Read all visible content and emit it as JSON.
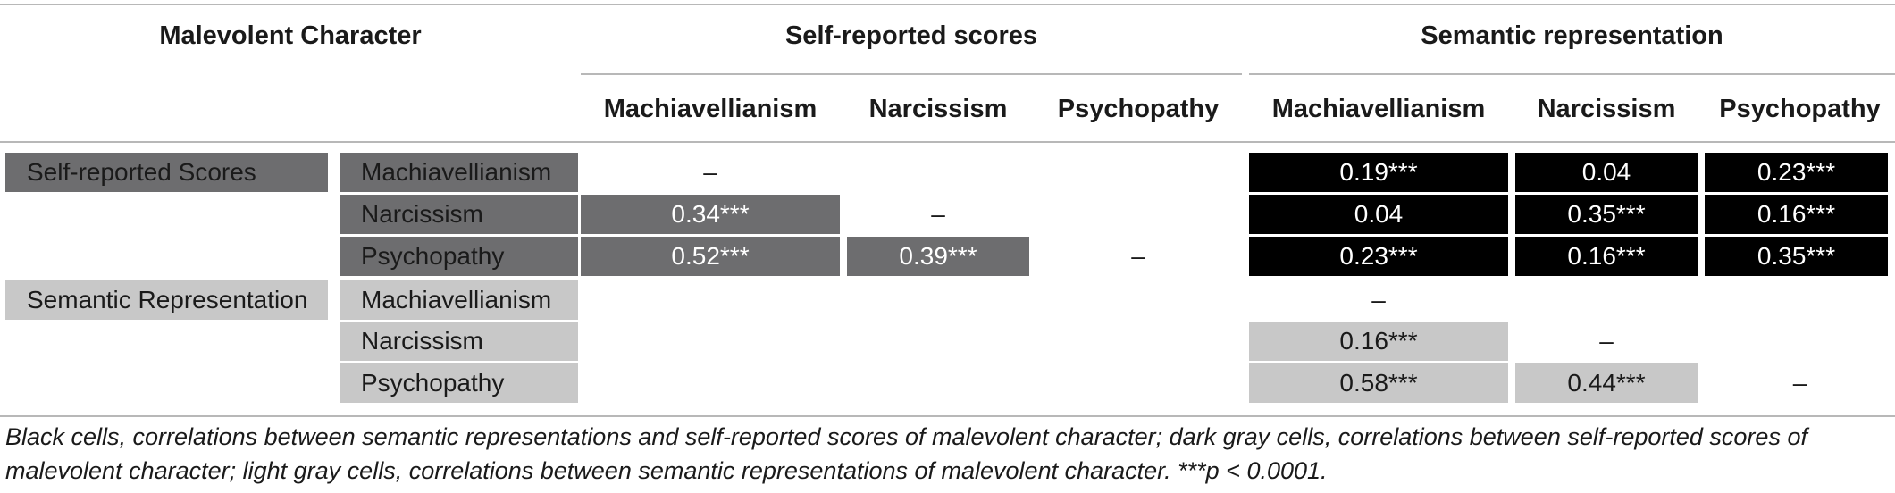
{
  "header": {
    "malevolent": "Malevolent Character",
    "self_reported": "Self-reported scores",
    "semantic": "Semantic representation",
    "cols": [
      "Machiavellianism",
      "Narcissism",
      "Psychopathy",
      "Machiavellianism",
      "Narcissism",
      "Psychopathy"
    ]
  },
  "groups": {
    "self_reported": "Self-reported Scores",
    "semantic": "Semantic Representation"
  },
  "row_labels": [
    "Machiavellianism",
    "Narcissism",
    "Psychopathy",
    "Machiavellianism",
    "Narcissism",
    "Psychopathy"
  ],
  "cells": {
    "r1": [
      "–",
      "",
      "",
      "0.19***",
      "0.04",
      "0.23***"
    ],
    "r2": [
      "0.34***",
      "–",
      "",
      "0.04",
      "0.35***",
      "0.16***"
    ],
    "r3": [
      "0.52***",
      "0.39***",
      "–",
      "0.23***",
      "0.16***",
      "0.35***"
    ],
    "r4": [
      "",
      "",
      "",
      "–",
      "",
      ""
    ],
    "r5": [
      "",
      "",
      "",
      "0.16***",
      "–",
      ""
    ],
    "r6": [
      "",
      "",
      "",
      "0.58***",
      "0.44***",
      "–"
    ]
  },
  "footnote": "Black cells, correlations between semantic representations and self-reported scores of malevolent character; dark gray cells, correlations between self-reported scores of malevolent character; light gray cells, correlations between semantic representations of malevolent character. ***p < 0.0001."
}
